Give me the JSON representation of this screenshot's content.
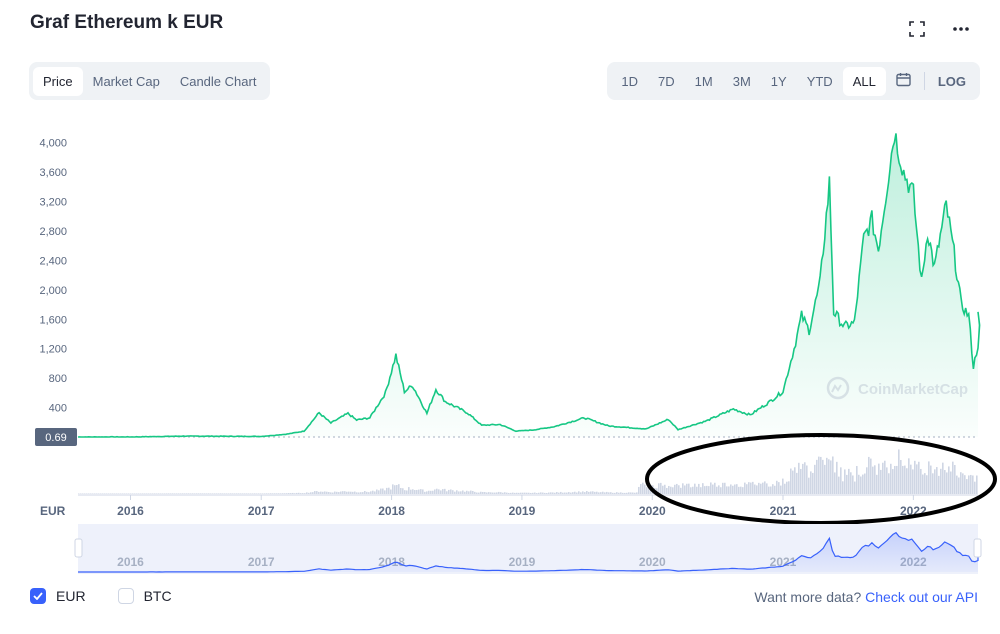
{
  "header": {
    "title": "Graf Ethereum k EUR"
  },
  "tabs_left": [
    {
      "label": "Price",
      "active": true
    },
    {
      "label": "Market Cap",
      "active": false
    },
    {
      "label": "Candle Chart",
      "active": false
    }
  ],
  "tabs_right": [
    {
      "label": "1D",
      "active": false
    },
    {
      "label": "7D",
      "active": false
    },
    {
      "label": "1M",
      "active": false
    },
    {
      "label": "3M",
      "active": false
    },
    {
      "label": "1Y",
      "active": false
    },
    {
      "label": "YTD",
      "active": false
    },
    {
      "label": "ALL",
      "active": true
    }
  ],
  "log_label": "LOG",
  "watermark": "CoinMarketCap",
  "legend": {
    "eur_label": "EUR",
    "btc_label": "BTC",
    "eur_checked": true,
    "btc_checked": false
  },
  "footer": {
    "text": "Want more data?",
    "link": "Check out our API"
  },
  "colors": {
    "line": "#16c784",
    "accent": "#3861fb",
    "volume": "#cfd6e4",
    "annotation": "#000000"
  },
  "chart_data": {
    "type": "line",
    "currency_label": "EUR",
    "current_label": "0.69",
    "ylim": [
      0,
      4200
    ],
    "yticks": [
      "400",
      "800",
      "1,200",
      "1,600",
      "2,000",
      "2,400",
      "2,800",
      "3,200",
      "3,600",
      "4,000"
    ],
    "ytick_values": [
      400,
      800,
      1200,
      1600,
      2000,
      2400,
      2800,
      3200,
      3600,
      4000
    ],
    "xticks": [
      "2016",
      "2017",
      "2018",
      "2019",
      "2020",
      "2021",
      "2022"
    ],
    "xtick_values": [
      "2016-01-01",
      "2017-01-01",
      "2018-01-01",
      "2019-01-01",
      "2020-01-01",
      "2021-01-01",
      "2022-01-01"
    ],
    "xlim": [
      "2015-08-07",
      "2022-07-01"
    ],
    "grid": false,
    "series": [
      {
        "values": [
          [
            "2015-08-07",
            0.69
          ],
          [
            "2016-01-01",
            1
          ],
          [
            "2016-06-01",
            12
          ],
          [
            "2017-01-01",
            8
          ],
          [
            "2017-03-15",
            40
          ],
          [
            "2017-05-01",
            80
          ],
          [
            "2017-06-12",
            330
          ],
          [
            "2017-07-15",
            190
          ],
          [
            "2017-09-01",
            320
          ],
          [
            "2017-09-25",
            230
          ],
          [
            "2017-11-01",
            260
          ],
          [
            "2017-12-15",
            600
          ],
          [
            "2018-01-13",
            1110
          ],
          [
            "2018-02-06",
            620
          ],
          [
            "2018-03-01",
            700
          ],
          [
            "2018-04-10",
            320
          ],
          [
            "2018-05-05",
            650
          ],
          [
            "2018-06-01",
            480
          ],
          [
            "2018-08-01",
            330
          ],
          [
            "2018-09-10",
            160
          ],
          [
            "2018-11-01",
            170
          ],
          [
            "2018-12-15",
            80
          ],
          [
            "2019-02-01",
            95
          ],
          [
            "2019-04-01",
            140
          ],
          [
            "2019-06-25",
            260
          ],
          [
            "2019-09-01",
            150
          ],
          [
            "2019-12-15",
            110
          ],
          [
            "2020-02-15",
            240
          ],
          [
            "2020-03-13",
            100
          ],
          [
            "2020-06-01",
            220
          ],
          [
            "2020-08-15",
            380
          ],
          [
            "2020-10-01",
            300
          ],
          [
            "2020-11-25",
            480
          ],
          [
            "2021-01-01",
            620
          ],
          [
            "2021-02-01",
            1200
          ],
          [
            "2021-02-22",
            1650
          ],
          [
            "2021-03-15",
            1450
          ],
          [
            "2021-04-15",
            2100
          ],
          [
            "2021-05-11",
            3450
          ],
          [
            "2021-05-23",
            1700
          ],
          [
            "2021-06-22",
            1500
          ],
          [
            "2021-07-20",
            1550
          ],
          [
            "2021-08-15",
            2700
          ],
          [
            "2021-09-07",
            2950
          ],
          [
            "2021-09-25",
            2550
          ],
          [
            "2021-11-09",
            4150
          ],
          [
            "2021-12-05",
            3600
          ],
          [
            "2022-01-01",
            3300
          ],
          [
            "2022-01-24",
            2100
          ],
          [
            "2022-02-10",
            2800
          ],
          [
            "2022-03-01",
            2300
          ],
          [
            "2022-04-03",
            3150
          ],
          [
            "2022-04-25",
            2500
          ],
          [
            "2022-05-15",
            1800
          ],
          [
            "2022-06-05",
            1650
          ],
          [
            "2022-06-18",
            950
          ],
          [
            "2022-07-01",
            1250
          ],
          [
            "2022-07-10",
            1700
          ]
        ]
      }
    ]
  }
}
